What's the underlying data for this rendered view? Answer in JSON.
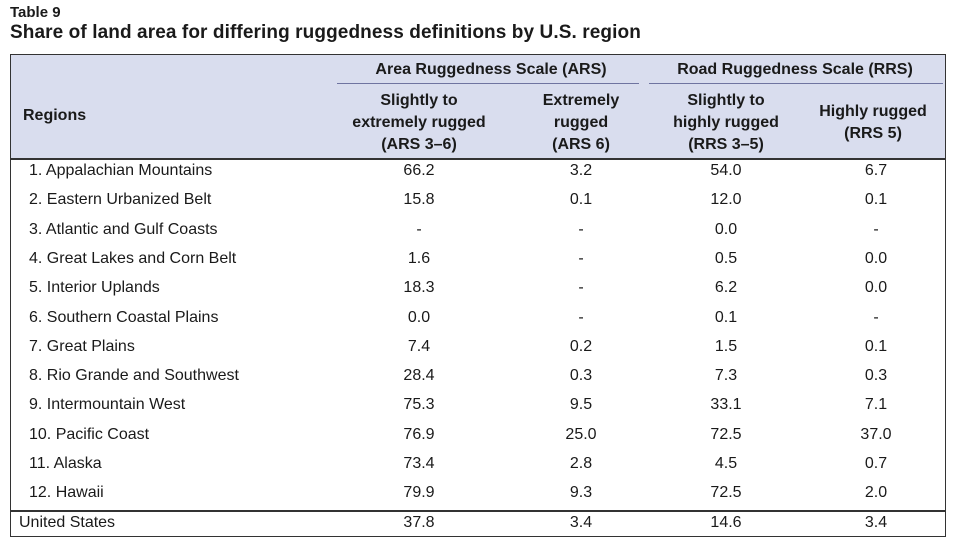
{
  "table_label": "Table 9",
  "title": "Share of land area for differing ruggedness definitions by U.S. region",
  "header": {
    "regions": "Regions",
    "groups": [
      {
        "label": "Area Ruggedness Scale (ARS)"
      },
      {
        "label": "Road Ruggedness Scale (RRS)"
      }
    ],
    "columns": [
      {
        "label": "Slightly to\nextremely rugged\n(ARS 3–6)"
      },
      {
        "label": "Extremely\nrugged\n(ARS 6)"
      },
      {
        "label": "Slightly to\nhighly rugged\n(RRS 3–5)"
      },
      {
        "label": "Highly rugged\n(RRS 5)"
      }
    ]
  },
  "rows": [
    {
      "region": "1. Appalachian Mountains",
      "v": [
        "66.2",
        "3.2",
        "54.0",
        "6.7"
      ]
    },
    {
      "region": "2. Eastern Urbanized Belt",
      "v": [
        "15.8",
        "0.1",
        "12.0",
        "0.1"
      ]
    },
    {
      "region": "3. Atlantic and Gulf Coasts",
      "v": [
        "-",
        "-",
        "0.0",
        "-"
      ]
    },
    {
      "region": "4. Great Lakes and Corn Belt",
      "v": [
        "1.6",
        "-",
        "0.5",
        "0.0"
      ]
    },
    {
      "region": "5. Interior Uplands",
      "v": [
        "18.3",
        "-",
        "6.2",
        "0.0"
      ]
    },
    {
      "region": "6. Southern Coastal Plains",
      "v": [
        "0.0",
        "-",
        "0.1",
        "-"
      ]
    },
    {
      "region": "7. Great Plains",
      "v": [
        "7.4",
        "0.2",
        "1.5",
        "0.1"
      ]
    },
    {
      "region": "8. Rio Grande and Southwest",
      "v": [
        "28.4",
        "0.3",
        "7.3",
        "0.3"
      ]
    },
    {
      "region": "9. Intermountain West",
      "v": [
        "75.3",
        "9.5",
        "33.1",
        "7.1"
      ]
    },
    {
      "region": "10. Pacific Coast",
      "v": [
        "76.9",
        "25.0",
        "72.5",
        "37.0"
      ]
    },
    {
      "region": "11. Alaska",
      "v": [
        "73.4",
        "2.8",
        "4.5",
        "0.7"
      ]
    },
    {
      "region": "12. Hawaii",
      "v": [
        "79.9",
        "9.3",
        "72.5",
        "2.0"
      ]
    }
  ],
  "total": {
    "region": "United States",
    "v": [
      "37.8",
      "3.4",
      "14.6",
      "3.4"
    ]
  }
}
